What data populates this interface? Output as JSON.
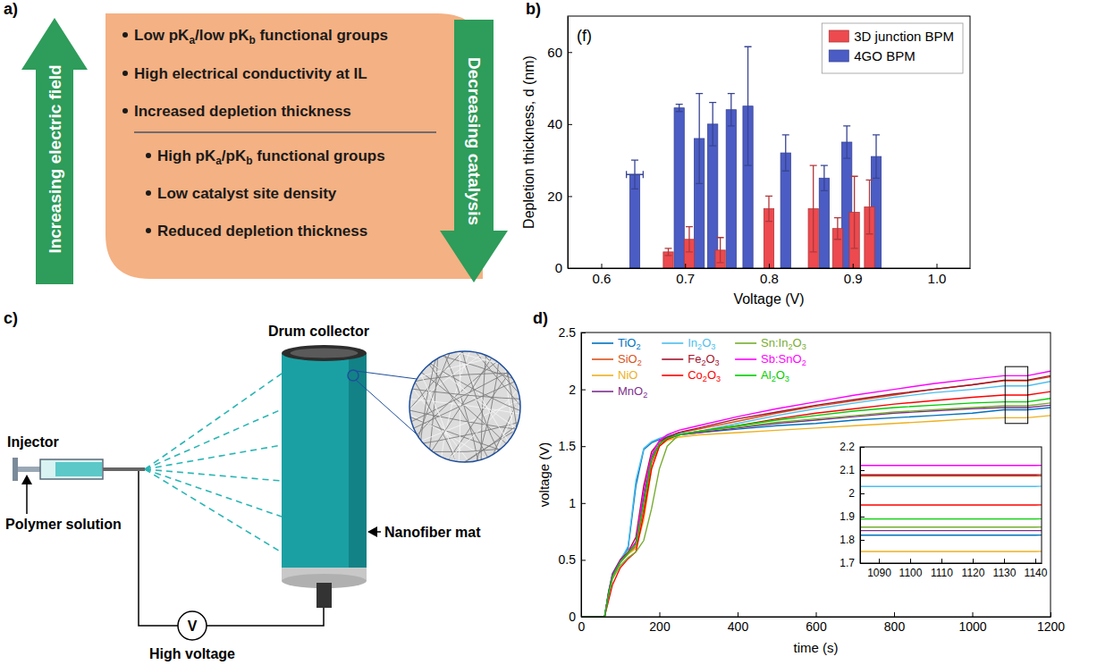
{
  "panel_labels": [
    "a)",
    "b)",
    "c)",
    "d)"
  ],
  "diagram_a": {
    "arrow_up": "Increasing electric field",
    "arrow_down": "Decreasing catalysis",
    "items": [
      "Low pKa/low pKb functional groups",
      "High electrical conductivity at IL",
      "Increased depletion thickness"
    ],
    "sub_items": [
      "High pKa/pKb functional groups",
      "Low catalyst site density",
      "Reduced depletion thickness"
    ]
  },
  "chart_data": [
    {
      "type": "bar",
      "x_label": "Voltage (V)",
      "y_label": "Depletion thickness, d (nm)",
      "annotations": [
        "(f)"
      ],
      "xlim": [
        0.56,
        1.04
      ],
      "xticks": [
        0.6,
        0.7,
        0.8,
        0.9,
        {
          "value": 1,
          "label": "1.0"
        }
      ],
      "ylim": [
        0,
        70
      ],
      "yticks": [
        0,
        20,
        40,
        60
      ],
      "legend": "upper right",
      "series": [
        {
          "name": "3D junction BPM",
          "color": "#ec4a4f",
          "x": [
            0.68,
            0.705,
            0.742,
            0.8,
            0.853,
            0.882,
            0.902,
            0.92
          ],
          "values": [
            4.5,
            8,
            5,
            16.5,
            16.5,
            11,
            15.5,
            17
          ],
          "errors": [
            1,
            3.5,
            3.5,
            3.5,
            12,
            3,
            10,
            7.5
          ]
        },
        {
          "name": "4GO BPM",
          "color": "#4b5cc4",
          "x": [
            0.64,
            0.693,
            0.717,
            0.733,
            0.755,
            0.775,
            0.82,
            0.866,
            0.893,
            0.928
          ],
          "values": [
            26,
            44.5,
            36,
            40,
            44,
            45,
            32,
            25,
            35,
            31
          ],
          "errors": [
            4,
            1,
            12.5,
            6,
            4.5,
            16.5,
            5,
            3.5,
            4.5,
            6
          ],
          "x_errors": [
            0.01,
            null,
            null,
            null,
            null,
            null,
            null,
            null,
            null,
            null
          ]
        }
      ]
    },
    {
      "type": "line",
      "x_label": "time (s)",
      "y_label": "voltage (V)",
      "x": [
        0,
        60,
        70,
        80,
        100,
        120,
        140,
        160,
        180,
        200,
        220,
        250,
        300,
        400,
        500,
        600,
        700,
        800,
        900,
        1000,
        1080,
        1140,
        1200
      ],
      "xlim": [
        0,
        1200
      ],
      "xticks": [
        0,
        200,
        400,
        600,
        800,
        1000,
        1200
      ],
      "ylim": [
        0,
        2.5
      ],
      "yticks": [
        0,
        0.5,
        1,
        1.5,
        2,
        2.5
      ],
      "legend": "upper left",
      "series": [
        {
          "name": "TiO2",
          "color": "#0072bd",
          "values": [
            0,
            0,
            0.22,
            0.38,
            0.5,
            0.6,
            1.15,
            1.47,
            1.53,
            1.56,
            1.58,
            1.6,
            1.62,
            1.65,
            1.68,
            1.7,
            1.73,
            1.75,
            1.77,
            1.79,
            1.82,
            1.82,
            1.84
          ]
        },
        {
          "name": "SiO2",
          "color": "#d95319",
          "values": [
            0,
            0,
            0.2,
            0.35,
            0.48,
            0.55,
            0.62,
            0.95,
            1.35,
            1.52,
            1.58,
            1.62,
            1.65,
            1.72,
            1.79,
            1.85,
            1.9,
            1.95,
            2.0,
            2.04,
            2.075,
            2.075,
            2.11
          ]
        },
        {
          "name": "NiO",
          "color": "#edb120",
          "values": [
            0,
            0,
            0.2,
            0.35,
            0.48,
            0.55,
            0.6,
            0.85,
            1.3,
            1.5,
            1.55,
            1.58,
            1.6,
            1.62,
            1.64,
            1.66,
            1.68,
            1.7,
            1.72,
            1.74,
            1.75,
            1.75,
            1.77
          ]
        },
        {
          "name": "MnO2",
          "color": "#7e2f8e",
          "values": [
            0,
            0,
            0.2,
            0.36,
            0.48,
            0.56,
            0.65,
            1.05,
            1.4,
            1.52,
            1.57,
            1.6,
            1.62,
            1.66,
            1.7,
            1.73,
            1.76,
            1.79,
            1.81,
            1.83,
            1.84,
            1.84,
            1.86
          ]
        },
        {
          "name": "In2O3",
          "color": "#4dbeee",
          "values": [
            0,
            0,
            0.2,
            0.36,
            0.49,
            0.62,
            1.2,
            1.48,
            1.54,
            1.57,
            1.59,
            1.61,
            1.63,
            1.7,
            1.77,
            1.83,
            1.88,
            1.93,
            1.97,
            2.0,
            2.03,
            2.03,
            2.07
          ]
        },
        {
          "name": "Fe2O3",
          "color": "#a2142f",
          "values": [
            0,
            0,
            0.21,
            0.37,
            0.5,
            0.57,
            0.7,
            1.15,
            1.45,
            1.54,
            1.58,
            1.62,
            1.66,
            1.74,
            1.8,
            1.86,
            1.91,
            1.96,
            2.0,
            2.04,
            2.08,
            2.08,
            2.12
          ]
        },
        {
          "name": "Co2O3",
          "color": "#ff0000",
          "values": [
            0,
            0,
            0.14,
            0.28,
            0.43,
            0.51,
            0.57,
            0.9,
            1.3,
            1.5,
            1.56,
            1.6,
            1.63,
            1.68,
            1.74,
            1.79,
            1.83,
            1.87,
            1.9,
            1.93,
            1.95,
            1.95,
            1.98
          ]
        },
        {
          "name": "Sn:In2O3",
          "color": "#77ac30",
          "values": [
            0,
            0,
            0.18,
            0.33,
            0.45,
            0.52,
            0.57,
            0.67,
            0.95,
            1.3,
            1.5,
            1.6,
            1.63,
            1.67,
            1.71,
            1.74,
            1.77,
            1.8,
            1.82,
            1.84,
            1.855,
            1.855,
            1.88
          ]
        },
        {
          "name": "Sb:SnO2",
          "color": "#ff00ff",
          "values": [
            0,
            0,
            0.2,
            0.36,
            0.49,
            0.56,
            0.66,
            1.1,
            1.42,
            1.55,
            1.6,
            1.64,
            1.68,
            1.76,
            1.83,
            1.89,
            1.95,
            2.0,
            2.05,
            2.09,
            2.12,
            2.12,
            2.16
          ]
        },
        {
          "name": "Al2O3",
          "color": "#00cc00",
          "values": [
            0,
            0,
            0.2,
            0.35,
            0.48,
            0.56,
            0.64,
            1.0,
            1.38,
            1.52,
            1.57,
            1.6,
            1.63,
            1.68,
            1.73,
            1.77,
            1.81,
            1.84,
            1.86,
            1.88,
            1.89,
            1.89,
            1.92
          ]
        }
      ],
      "inset": {
        "xlim": [
          1084,
          1142
        ],
        "xticks": [
          1090,
          1100,
          1110,
          1120,
          1130,
          1140
        ],
        "ylim": [
          1.7,
          2.2
        ],
        "yticks": [
          1.7,
          1.8,
          1.9,
          2,
          2.1,
          2.2
        ]
      }
    }
  ],
  "diagram_c": {
    "injector": "Injector",
    "polymer_solution": "Polymer solution",
    "drum_collector": "Drum collector",
    "nanofiber_mat": "Nanofiber mat",
    "high_voltage": "High voltage",
    "meter": "V"
  }
}
